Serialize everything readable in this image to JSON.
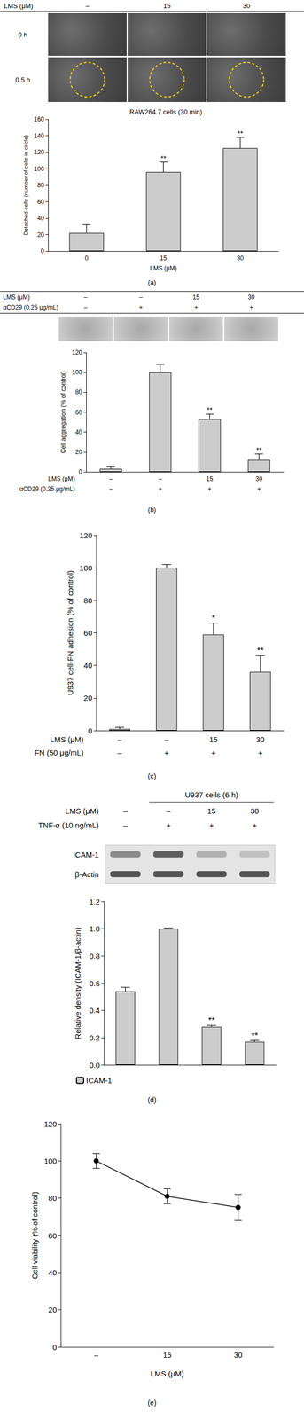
{
  "chart_data": [
    {
      "type": "bar",
      "panel": "(a)",
      "title": "RAW264.7 cells (30 min)",
      "x_label": "LMS (μM)",
      "y_label": "Detached cells (number of cells in circle)",
      "categories": [
        "0",
        "15",
        "30"
      ],
      "values": [
        22,
        96,
        125
      ],
      "errors": [
        10,
        12,
        13
      ],
      "significance": [
        null,
        "**",
        "**"
      ],
      "color": "#cccccc",
      "ylim": [
        0,
        160
      ],
      "yticks": [
        0,
        20,
        40,
        60,
        80,
        100,
        120,
        140,
        160
      ],
      "grid": false
    },
    {
      "type": "bar",
      "panel": "(b)",
      "y_label": "Cell aggregation (% of control)",
      "categories": [
        null,
        null,
        null,
        null
      ],
      "condition_rows": [
        {
          "label": "LMS (μM)",
          "values": [
            "–",
            "–",
            "15",
            "30"
          ]
        },
        {
          "label": "αCD29 (0.25 μg/mL)",
          "values": [
            "–",
            "+",
            "+",
            "+"
          ]
        }
      ],
      "values": [
        3,
        100,
        53,
        12
      ],
      "errors": [
        2,
        8,
        5,
        6
      ],
      "significance": [
        null,
        null,
        "**",
        "**"
      ],
      "color": "#cccccc",
      "ylim": [
        0,
        120
      ],
      "yticks": [
        0,
        20,
        40,
        60,
        80,
        100,
        120
      ],
      "grid": false
    },
    {
      "type": "bar",
      "panel": "(c)",
      "y_label": "U937 cell-FN adhesion (% of control)",
      "categories": [
        null,
        null,
        null,
        null
      ],
      "condition_rows": [
        {
          "label": "LMS (μM)",
          "values": [
            "–",
            "–",
            "15",
            "30"
          ]
        },
        {
          "label": "FN (50 μg/mL)",
          "values": [
            "–",
            "+",
            "+",
            "+"
          ]
        }
      ],
      "values": [
        1,
        100,
        59,
        36
      ],
      "errors": [
        1,
        2,
        7,
        10
      ],
      "significance": [
        null,
        null,
        "*",
        "**"
      ],
      "color": "#cccccc",
      "ylim": [
        0,
        120
      ],
      "yticks": [
        0,
        20,
        40,
        60,
        80,
        100,
        120
      ],
      "grid": false
    },
    {
      "type": "bar",
      "panel": "(d)",
      "title": "U937 cells (6 h)",
      "y_label": "Relative density (ICAM-1/β-actin)",
      "categories": [
        null,
        null,
        null,
        null
      ],
      "condition_rows": [
        {
          "label": "LMS (μM)",
          "values": [
            "–",
            "–",
            "15",
            "30"
          ]
        },
        {
          "label": "TNF-α (10 ng/mL)",
          "values": [
            "–",
            "+",
            "+",
            "+"
          ]
        }
      ],
      "blot_bands": [
        "ICAM-1",
        "β-Actin"
      ],
      "series": [
        {
          "name": "ICAM-1",
          "color": "#cccccc",
          "values": [
            0.54,
            1.0,
            0.28,
            0.17
          ],
          "errors": [
            0.03,
            0.005,
            0.01,
            0.01
          ]
        }
      ],
      "significance": [
        null,
        null,
        "**",
        "**"
      ],
      "legend": "bottom",
      "ylim": [
        0,
        1.2
      ],
      "yticks": [
        {
          "value": 0,
          "label": "0.0"
        },
        0.2,
        0.4,
        0.6,
        0.8,
        {
          "value": 1,
          "label": "1.0"
        },
        1.2
      ],
      "grid": false
    },
    {
      "type": "line",
      "panel": "(e)",
      "x_label": "LMS (μM)",
      "y_label": "Cell viability (% of control)",
      "categories": [
        "–",
        "15",
        "30"
      ],
      "values": [
        100,
        81,
        75
      ],
      "errors": [
        4,
        4,
        7
      ],
      "color": "#000000",
      "marker": "circle",
      "ylim": [
        0,
        120
      ],
      "yticks": [
        0,
        20,
        40,
        60,
        80,
        100,
        120
      ],
      "grid": false
    }
  ],
  "images": [
    {
      "header_label": "LMS (μM)",
      "columns": [
        "–",
        "15",
        "30"
      ],
      "rows": [
        "0 h",
        "0.5 h"
      ]
    },
    {
      "condition_rows": [
        {
          "label": "LMS (μM)",
          "values": [
            "–",
            "–",
            "15",
            "30"
          ]
        },
        {
          "label": "αCD29 (0.25 μg/mL)",
          "values": [
            "–",
            "+",
            "+",
            "+"
          ]
        }
      ]
    }
  ]
}
